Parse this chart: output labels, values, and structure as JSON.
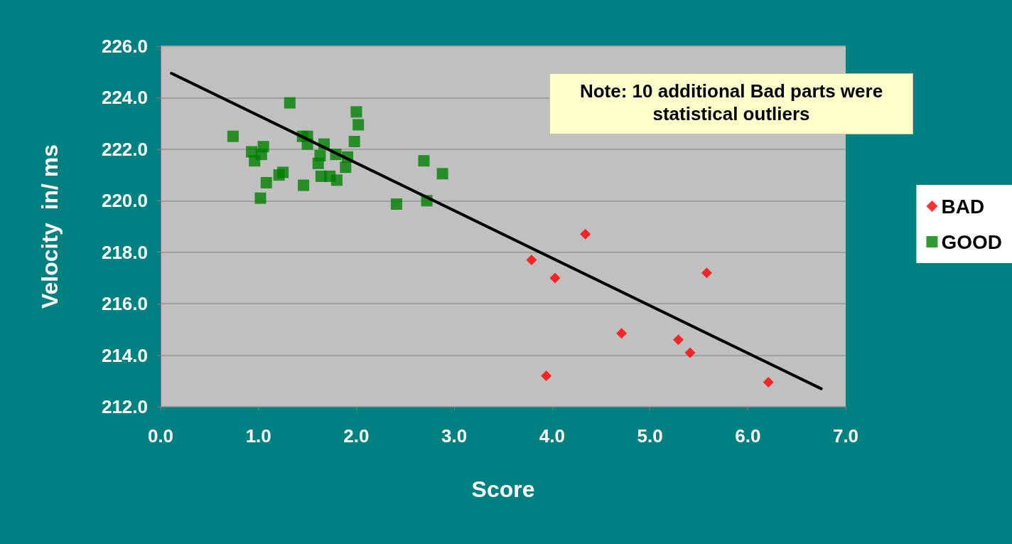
{
  "chart_data": {
    "type": "scatter",
    "xlabel": "Score",
    "ylabel": "Velocity  in/ ms",
    "annotations": [
      "Note: 10 additional Bad parts were statistical outliers"
    ],
    "xlim": [
      0,
      7
    ],
    "xticks": [
      {
        "value": 0,
        "label": "0.0"
      },
      {
        "value": 1,
        "label": "1.0"
      },
      {
        "value": 2,
        "label": "2.0"
      },
      {
        "value": 3,
        "label": "3.0"
      },
      {
        "value": 4,
        "label": "4.0"
      },
      {
        "value": 5,
        "label": "5.0"
      },
      {
        "value": 6,
        "label": "6.0"
      },
      {
        "value": 7,
        "label": "7.0"
      }
    ],
    "ylim": [
      212,
      226
    ],
    "yticks": [
      {
        "value": 212,
        "label": "212.0"
      },
      {
        "value": 214,
        "label": "214.0"
      },
      {
        "value": 216,
        "label": "216.0"
      },
      {
        "value": 218,
        "label": "218.0"
      },
      {
        "value": 220,
        "label": "220.0"
      },
      {
        "value": 222,
        "label": "222.0"
      },
      {
        "value": 224,
        "label": "224.0"
      },
      {
        "value": 226,
        "label": "226.0"
      }
    ],
    "grid": "y",
    "legend": "right",
    "series": [
      {
        "name": "BAD",
        "color": "#ff0000",
        "marker": "diamond",
        "x": [
          3.79,
          3.94,
          4.03,
          4.34,
          4.71,
          5.29,
          5.41,
          5.58,
          6.21
        ],
        "values": [
          217.7,
          213.2,
          217.0,
          218.7,
          214.85,
          214.6,
          214.1,
          217.2,
          212.95
        ]
      },
      {
        "name": "GOOD",
        "color": "#008000",
        "marker": "square",
        "x": [
          0.74,
          0.93,
          0.96,
          1.03,
          1.05,
          1.08,
          1.02,
          1.21,
          1.25,
          1.32,
          1.46,
          1.45,
          1.5,
          1.5,
          1.61,
          1.63,
          1.67,
          1.64,
          1.73,
          1.8,
          1.79,
          1.89,
          1.91,
          1.98,
          2.0,
          2.02,
          2.41,
          2.69,
          2.72,
          2.88
        ],
        "values": [
          222.5,
          221.9,
          221.55,
          221.8,
          222.1,
          220.7,
          220.1,
          221.0,
          221.1,
          223.8,
          220.6,
          222.5,
          222.5,
          222.2,
          221.45,
          221.75,
          222.2,
          220.95,
          220.95,
          220.8,
          221.8,
          221.3,
          221.7,
          222.3,
          223.45,
          222.95,
          219.87,
          221.55,
          220.0,
          221.05
        ]
      },
      {
        "type": "line",
        "color": "#000000",
        "marker": "none",
        "line_style": "solid",
        "x": [
          0.11,
          6.75
        ],
        "values": [
          224.95,
          212.7
        ]
      }
    ]
  }
}
